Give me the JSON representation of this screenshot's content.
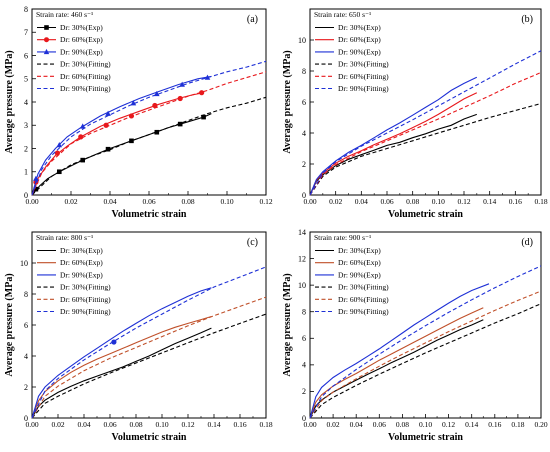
{
  "chart_data": [
    {
      "type": "line",
      "panel_label": "(a)",
      "strain_rate_label": "Strain rate: 460 s⁻¹",
      "xlabel": "Volumetric strain",
      "ylabel": "Average pressure (MPa)",
      "xlim": [
        0,
        0.12
      ],
      "ylim": [
        0,
        8
      ],
      "xticks": [
        "0.00",
        "0.02",
        "0.04",
        "0.06",
        "0.08",
        "0.10",
        "0.12"
      ],
      "yticks": [
        "0",
        "1",
        "2",
        "3",
        "4",
        "5",
        "6",
        "7",
        "8"
      ],
      "legend_position": "top-left",
      "series": [
        {
          "name": "Dr: 30%(Exp)",
          "style": "solid",
          "color": "#000000",
          "marker": "square",
          "x": [
            0,
            0.004,
            0.008,
            0.014,
            0.02,
            0.026,
            0.032,
            0.04,
            0.05,
            0.06,
            0.07,
            0.08,
            0.088,
            0.092
          ],
          "y": [
            0,
            0.4,
            0.7,
            1.0,
            1.25,
            1.5,
            1.72,
            2.0,
            2.3,
            2.6,
            2.9,
            3.15,
            3.35,
            3.5
          ],
          "marker_x": [
            0.002,
            0.014,
            0.026,
            0.039,
            0.051,
            0.064,
            0.076,
            0.088
          ],
          "marker_y": [
            0.25,
            1.0,
            1.5,
            1.97,
            2.33,
            2.7,
            3.05,
            3.35
          ]
        },
        {
          "name": "Dr: 60%(Exp)",
          "style": "solid",
          "color": "#e8181c",
          "marker": "circle",
          "x": [
            0,
            0.003,
            0.007,
            0.012,
            0.018,
            0.025,
            0.035,
            0.045,
            0.055,
            0.065,
            0.075,
            0.082,
            0.088
          ],
          "y": [
            0,
            0.7,
            1.2,
            1.7,
            2.1,
            2.5,
            2.95,
            3.3,
            3.6,
            3.9,
            4.15,
            4.3,
            4.4
          ],
          "marker_x": [
            0.002,
            0.013,
            0.025,
            0.038,
            0.051,
            0.063,
            0.076,
            0.087
          ],
          "marker_y": [
            0.55,
            1.8,
            2.5,
            3.0,
            3.4,
            3.85,
            4.15,
            4.4
          ]
        },
        {
          "name": "Dr: 90%(Exp)",
          "style": "solid",
          "color": "#1e30d6",
          "marker": "triangle",
          "x": [
            0,
            0.003,
            0.007,
            0.012,
            0.018,
            0.025,
            0.035,
            0.045,
            0.055,
            0.065,
            0.075,
            0.085,
            0.092
          ],
          "y": [
            0,
            0.9,
            1.5,
            2.0,
            2.5,
            2.9,
            3.4,
            3.8,
            4.15,
            4.45,
            4.75,
            5.0,
            5.1
          ],
          "marker_x": [
            0.002,
            0.014,
            0.026,
            0.039,
            0.052,
            0.064,
            0.077,
            0.09
          ],
          "marker_y": [
            0.7,
            2.15,
            2.95,
            3.5,
            3.95,
            4.35,
            4.75,
            5.05
          ]
        },
        {
          "name": "Dr: 30%(Fitting)",
          "style": "dashed",
          "color": "#000000",
          "x": [
            0,
            0.01,
            0.02,
            0.03,
            0.04,
            0.05,
            0.06,
            0.07,
            0.08,
            0.09,
            0.1,
            0.11,
            0.12
          ],
          "y": [
            0,
            0.8,
            1.3,
            1.65,
            1.95,
            2.3,
            2.6,
            2.9,
            3.2,
            3.5,
            3.75,
            3.95,
            4.2
          ]
        },
        {
          "name": "Dr: 60%(Fitting)",
          "style": "dashed",
          "color": "#e8181c",
          "x": [
            0,
            0.005,
            0.01,
            0.02,
            0.03,
            0.04,
            0.05,
            0.06,
            0.07,
            0.08,
            0.09,
            0.1,
            0.11,
            0.12
          ],
          "y": [
            0,
            0.95,
            1.45,
            2.2,
            2.65,
            3.0,
            3.35,
            3.65,
            3.95,
            4.25,
            4.5,
            4.8,
            5.05,
            5.3
          ]
        },
        {
          "name": "Dr: 90%(Fitting)",
          "style": "dashed",
          "color": "#1e30d6",
          "x": [
            0,
            0.005,
            0.01,
            0.02,
            0.03,
            0.04,
            0.05,
            0.06,
            0.07,
            0.08,
            0.09,
            0.1,
            0.11,
            0.12
          ],
          "y": [
            0,
            1.1,
            1.7,
            2.5,
            3.05,
            3.45,
            3.85,
            4.2,
            4.5,
            4.8,
            5.05,
            5.3,
            5.5,
            5.75
          ]
        }
      ]
    },
    {
      "type": "line",
      "panel_label": "(b)",
      "strain_rate_label": "Strain rate: 650 s⁻¹",
      "xlabel": "Volumetric strain",
      "ylabel": "Average pressure (MPa)",
      "xlim": [
        0,
        0.18
      ],
      "ylim": [
        0,
        12
      ],
      "xticks": [
        "0.00",
        "0.02",
        "0.04",
        "0.06",
        "0.08",
        "0.10",
        "0.12",
        "0.14",
        "0.16",
        "0.18"
      ],
      "yticks": [
        "0",
        "2",
        "4",
        "6",
        "8",
        "10"
      ],
      "legend_position": "top-left",
      "series": [
        {
          "name": "Dr: 30%(Exp)",
          "style": "solid",
          "color": "#000000",
          "x": [
            0,
            0.005,
            0.01,
            0.02,
            0.03,
            0.04,
            0.05,
            0.06,
            0.07,
            0.08,
            0.09,
            0.1,
            0.11,
            0.12,
            0.13
          ],
          "y": [
            0,
            0.9,
            1.3,
            1.9,
            2.3,
            2.6,
            2.9,
            3.2,
            3.4,
            3.7,
            3.95,
            4.25,
            4.5,
            4.9,
            5.2
          ]
        },
        {
          "name": "Dr: 60%(Exp)",
          "style": "solid",
          "color": "#e8181c",
          "x": [
            0,
            0.005,
            0.01,
            0.02,
            0.03,
            0.04,
            0.05,
            0.06,
            0.07,
            0.08,
            0.09,
            0.1,
            0.11,
            0.12,
            0.13
          ],
          "y": [
            0,
            0.95,
            1.4,
            2.05,
            2.5,
            2.85,
            3.25,
            3.6,
            3.95,
            4.35,
            4.75,
            5.2,
            5.7,
            6.2,
            6.6
          ]
        },
        {
          "name": "Dr: 90%(Exp)",
          "style": "solid",
          "color": "#1e30d6",
          "x": [
            0,
            0.005,
            0.01,
            0.02,
            0.03,
            0.04,
            0.05,
            0.06,
            0.07,
            0.08,
            0.09,
            0.1,
            0.11,
            0.12,
            0.13
          ],
          "y": [
            0,
            1.0,
            1.5,
            2.2,
            2.75,
            3.2,
            3.7,
            4.2,
            4.65,
            5.15,
            5.65,
            6.15,
            6.75,
            7.2,
            7.6
          ]
        },
        {
          "name": "Dr: 30%(Fitting)",
          "style": "dashed",
          "color": "#000000",
          "x": [
            0,
            0.01,
            0.02,
            0.04,
            0.06,
            0.08,
            0.1,
            0.12,
            0.14,
            0.16,
            0.18
          ],
          "y": [
            0,
            1.2,
            1.8,
            2.5,
            3.0,
            3.5,
            4.0,
            4.5,
            5.0,
            5.45,
            5.9
          ]
        },
        {
          "name": "Dr: 60%(Fitting)",
          "style": "dashed",
          "color": "#e8181c",
          "x": [
            0,
            0.01,
            0.02,
            0.04,
            0.06,
            0.08,
            0.1,
            0.12,
            0.14,
            0.16,
            0.18
          ],
          "y": [
            0,
            1.3,
            1.95,
            2.8,
            3.5,
            4.2,
            4.9,
            5.65,
            6.4,
            7.2,
            7.9
          ]
        },
        {
          "name": "Dr: 90%(Fitting)",
          "style": "dashed",
          "color": "#1e30d6",
          "x": [
            0,
            0.01,
            0.02,
            0.04,
            0.06,
            0.08,
            0.1,
            0.12,
            0.14,
            0.16,
            0.18
          ],
          "y": [
            0,
            1.4,
            2.15,
            3.15,
            4.0,
            4.85,
            5.75,
            6.65,
            7.55,
            8.45,
            9.3
          ]
        }
      ]
    },
    {
      "type": "line",
      "panel_label": "(c)",
      "strain_rate_label": "Strain rate: 800 s⁻¹",
      "xlabel": "Volumetric strain",
      "ylabel": "Average pressure (MPa)",
      "xlim": [
        0,
        0.18
      ],
      "ylim": [
        0,
        12
      ],
      "xticks": [
        "0.00",
        "0.02",
        "0.04",
        "0.06",
        "0.08",
        "0.10",
        "0.12",
        "0.14",
        "0.16",
        "0.18"
      ],
      "yticks": [
        "0",
        "2",
        "4",
        "6",
        "8",
        "10"
      ],
      "legend_position": "top-left",
      "series": [
        {
          "name": "Dr: 30%(Exp)",
          "style": "solid",
          "color": "#000000",
          "x": [
            0,
            0.005,
            0.01,
            0.02,
            0.03,
            0.04,
            0.05,
            0.06,
            0.07,
            0.08,
            0.09,
            0.1,
            0.11,
            0.12,
            0.13,
            0.138
          ],
          "y": [
            0,
            0.75,
            1.15,
            1.65,
            2.05,
            2.4,
            2.7,
            3.0,
            3.3,
            3.65,
            4.0,
            4.4,
            4.8,
            5.15,
            5.5,
            5.8
          ]
        },
        {
          "name": "Dr: 60%(Exp)",
          "style": "solid",
          "color": "#c0502a",
          "x": [
            0,
            0.005,
            0.01,
            0.02,
            0.03,
            0.04,
            0.05,
            0.06,
            0.07,
            0.08,
            0.09,
            0.1,
            0.11,
            0.12,
            0.13,
            0.138
          ],
          "y": [
            0,
            1.1,
            1.7,
            2.4,
            2.95,
            3.4,
            3.8,
            4.15,
            4.5,
            4.85,
            5.2,
            5.55,
            5.85,
            6.1,
            6.35,
            6.55
          ]
        },
        {
          "name": "Dr: 90%(Exp)",
          "style": "solid",
          "color": "#1e30d6",
          "x": [
            0,
            0.005,
            0.01,
            0.02,
            0.03,
            0.04,
            0.05,
            0.06,
            0.07,
            0.08,
            0.09,
            0.1,
            0.11,
            0.12,
            0.13,
            0.138
          ],
          "y": [
            0,
            1.4,
            2.0,
            2.75,
            3.35,
            3.95,
            4.5,
            5.05,
            5.6,
            6.1,
            6.6,
            7.05,
            7.45,
            7.85,
            8.2,
            8.4
          ]
        },
        {
          "name": "Dr: 30%(Fitting)",
          "style": "dashed",
          "color": "#000000",
          "x": [
            0,
            0.01,
            0.02,
            0.04,
            0.06,
            0.08,
            0.1,
            0.12,
            0.14,
            0.16,
            0.18
          ],
          "y": [
            0,
            0.95,
            1.4,
            2.2,
            2.9,
            3.55,
            4.2,
            4.85,
            5.5,
            6.1,
            6.7
          ]
        },
        {
          "name": "Dr: 60%(Fitting)",
          "style": "dashed",
          "color": "#c0502a",
          "x": [
            0,
            0.01,
            0.02,
            0.04,
            0.06,
            0.08,
            0.1,
            0.12,
            0.14,
            0.16,
            0.18
          ],
          "y": [
            0,
            1.4,
            2.05,
            3.05,
            3.85,
            4.55,
            5.25,
            5.95,
            6.6,
            7.2,
            7.8
          ]
        },
        {
          "name": "Dr: 90%(Fitting)",
          "style": "dashed",
          "color": "#1e30d6",
          "x": [
            0,
            0.01,
            0.02,
            0.04,
            0.06,
            0.08,
            0.1,
            0.12,
            0.14,
            0.16,
            0.18
          ],
          "y": [
            0,
            1.75,
            2.55,
            3.75,
            4.8,
            5.8,
            6.7,
            7.6,
            8.45,
            9.1,
            9.75
          ]
        }
      ],
      "annotation_marker": {
        "x": 0.063,
        "y": 4.9,
        "color": "#1e30d6"
      }
    },
    {
      "type": "line",
      "panel_label": "(d)",
      "strain_rate_label": "Strain rate: 900 s⁻¹",
      "xlabel": "Volumetric strain",
      "ylabel": "Average pressure (MPa)",
      "xlim": [
        0,
        0.2
      ],
      "ylim": [
        0,
        14
      ],
      "xticks": [
        "0.00",
        "0.02",
        "0.04",
        "0.06",
        "0.08",
        "0.10",
        "0.12",
        "0.14",
        "0.16",
        "0.18",
        "0.20"
      ],
      "yticks": [
        "0",
        "2",
        "4",
        "6",
        "8",
        "10",
        "12",
        "14"
      ],
      "legend_position": "top-left",
      "series": [
        {
          "name": "Dr: 30%(Exp)",
          "style": "solid",
          "color": "#000000",
          "x": [
            0,
            0.005,
            0.01,
            0.02,
            0.03,
            0.04,
            0.05,
            0.06,
            0.07,
            0.08,
            0.09,
            0.1,
            0.11,
            0.12,
            0.13,
            0.14,
            0.15
          ],
          "y": [
            0,
            0.9,
            1.35,
            1.95,
            2.4,
            2.85,
            3.3,
            3.7,
            4.15,
            4.55,
            4.95,
            5.4,
            5.85,
            6.25,
            6.65,
            7.0,
            7.4
          ]
        },
        {
          "name": "Dr: 60%(Exp)",
          "style": "solid",
          "color": "#c0502a",
          "x": [
            0,
            0.005,
            0.01,
            0.02,
            0.03,
            0.04,
            0.05,
            0.06,
            0.07,
            0.08,
            0.09,
            0.1,
            0.11,
            0.12,
            0.13,
            0.14,
            0.15
          ],
          "y": [
            0,
            1.2,
            1.75,
            2.4,
            2.9,
            3.35,
            3.85,
            4.35,
            4.8,
            5.25,
            5.7,
            6.15,
            6.6,
            7.05,
            7.5,
            7.9,
            8.3
          ]
        },
        {
          "name": "Dr: 90%(Exp)",
          "style": "solid",
          "color": "#1e30d6",
          "x": [
            0,
            0.005,
            0.01,
            0.02,
            0.03,
            0.04,
            0.05,
            0.06,
            0.07,
            0.08,
            0.09,
            0.1,
            0.11,
            0.12,
            0.13,
            0.14,
            0.155
          ],
          "y": [
            0,
            1.6,
            2.3,
            3.05,
            3.6,
            4.1,
            4.65,
            5.2,
            5.8,
            6.4,
            7.0,
            7.55,
            8.1,
            8.65,
            9.15,
            9.6,
            10.1
          ]
        },
        {
          "name": "Dr: 30%(Fitting)",
          "style": "dashed",
          "color": "#000000",
          "x": [
            0,
            0.01,
            0.02,
            0.04,
            0.06,
            0.08,
            0.1,
            0.12,
            0.14,
            0.16,
            0.18,
            0.2
          ],
          "y": [
            0,
            1.0,
            1.55,
            2.45,
            3.3,
            4.1,
            4.9,
            5.65,
            6.4,
            7.15,
            7.85,
            8.6
          ]
        },
        {
          "name": "Dr: 60%(Fitting)",
          "style": "dashed",
          "color": "#c0502a",
          "x": [
            0,
            0.01,
            0.02,
            0.04,
            0.06,
            0.08,
            0.1,
            0.12,
            0.14,
            0.16,
            0.18,
            0.2
          ],
          "y": [
            0,
            1.3,
            1.95,
            2.95,
            3.9,
            4.8,
            5.65,
            6.5,
            7.3,
            8.1,
            8.85,
            9.55
          ]
        },
        {
          "name": "Dr: 90%(Fitting)",
          "style": "dashed",
          "color": "#1e30d6",
          "x": [
            0,
            0.01,
            0.02,
            0.04,
            0.06,
            0.08,
            0.1,
            0.12,
            0.14,
            0.16,
            0.18,
            0.2
          ],
          "y": [
            0,
            1.6,
            2.4,
            3.65,
            4.8,
            5.9,
            6.95,
            7.95,
            8.9,
            9.8,
            10.65,
            11.45
          ]
        }
      ]
    }
  ]
}
